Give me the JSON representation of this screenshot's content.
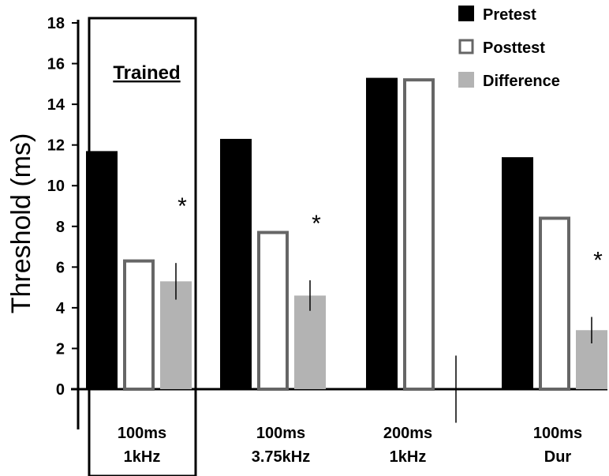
{
  "chart_data": {
    "type": "bar",
    "title": "",
    "xlabel": "",
    "ylabel": "Threshold (ms)",
    "ylim": [
      0,
      18
    ],
    "yticks": [
      0,
      2,
      4,
      6,
      8,
      10,
      12,
      14,
      16,
      18
    ],
    "categories": [
      [
        "100ms",
        "1kHz"
      ],
      [
        "100ms",
        "3.75kHz"
      ],
      [
        "200ms",
        "1kHz"
      ],
      [
        "100ms",
        "Dur"
      ]
    ],
    "series": [
      {
        "name": "Pretest",
        "color": "#000000",
        "style": "filled",
        "values": [
          11.7,
          12.3,
          15.3,
          11.4
        ]
      },
      {
        "name": "Posttest",
        "color": "#666666",
        "style": "outline",
        "values": [
          6.3,
          7.7,
          15.2,
          8.4
        ]
      },
      {
        "name": "Difference",
        "color": "#b3b3b3",
        "style": "filled",
        "values": [
          5.3,
          4.6,
          0.0,
          2.9
        ],
        "error": [
          0.9,
          0.75,
          1.65,
          0.65
        ]
      }
    ],
    "significance": [
      "*",
      "*",
      "",
      "*"
    ],
    "highlight": {
      "label": "Trained",
      "category_index": 0
    },
    "legend_position": "top-right",
    "grid": false
  }
}
